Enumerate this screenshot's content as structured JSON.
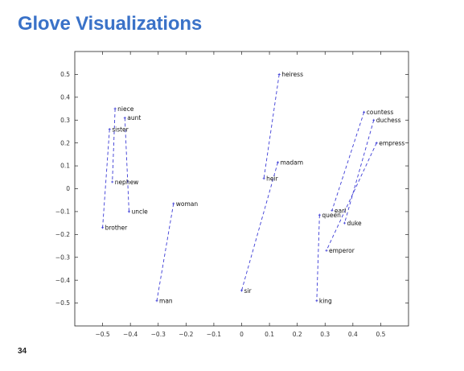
{
  "slide": {
    "title": "Glove Visualizations",
    "page_number": "34"
  },
  "colors": {
    "title": "#3a72c8",
    "pair_line": "#3b3bd6",
    "axes": "#222222",
    "page_background": "#ffffff"
  },
  "chart_data": {
    "type": "scatter",
    "title": "",
    "xlabel": "",
    "ylabel": "",
    "xlim": [
      -0.6,
      0.6
    ],
    "ylim": [
      -0.6,
      0.6
    ],
    "xticks": [
      -0.5,
      -0.4,
      -0.3,
      -0.2,
      -0.1,
      0,
      0.1,
      0.2,
      0.3,
      0.4,
      0.5
    ],
    "xtick_labels": [
      "−0.5",
      "−0.4",
      "−0.3",
      "−0.2",
      "−0.1",
      "0",
      "0.1",
      "0.2",
      "0.3",
      "0.4",
      "0.5"
    ],
    "yticks": [
      0.5,
      0.4,
      0.3,
      0.2,
      0.1,
      0,
      -0.1,
      -0.2,
      -0.3,
      -0.4,
      -0.5
    ],
    "ytick_labels": [
      "0.5",
      "0.4",
      "0.3",
      "0.2",
      "0.1",
      "0",
      "−0.1",
      "−0.2",
      "−0.3",
      "−0.4",
      "−0.5"
    ],
    "grid": false,
    "points": [
      {
        "word": "niece",
        "x": -0.455,
        "y": 0.35
      },
      {
        "word": "aunt",
        "x": -0.42,
        "y": 0.31
      },
      {
        "word": "sister",
        "x": -0.475,
        "y": 0.26
      },
      {
        "word": "nephew",
        "x": -0.465,
        "y": 0.03
      },
      {
        "word": "uncle",
        "x": -0.405,
        "y": -0.1
      },
      {
        "word": "brother",
        "x": -0.5,
        "y": -0.17
      },
      {
        "word": "woman",
        "x": -0.245,
        "y": -0.065
      },
      {
        "word": "man",
        "x": -0.305,
        "y": -0.49
      },
      {
        "word": "heiress",
        "x": 0.135,
        "y": 0.5
      },
      {
        "word": "madam",
        "x": 0.13,
        "y": 0.115
      },
      {
        "word": "heir",
        "x": 0.08,
        "y": 0.045
      },
      {
        "word": "sir",
        "x": 0.0,
        "y": -0.445
      },
      {
        "word": "countess",
        "x": 0.44,
        "y": 0.335
      },
      {
        "word": "duchess",
        "x": 0.475,
        "y": 0.3
      },
      {
        "word": "empress",
        "x": 0.485,
        "y": 0.2
      },
      {
        "word": "earl",
        "x": 0.325,
        "y": -0.095
      },
      {
        "word": "queen",
        "x": 0.28,
        "y": -0.115
      },
      {
        "word": "duke",
        "x": 0.37,
        "y": -0.15
      },
      {
        "word": "emperor",
        "x": 0.305,
        "y": -0.27
      },
      {
        "word": "king",
        "x": 0.27,
        "y": -0.49
      }
    ],
    "pairs": [
      [
        "niece",
        "nephew"
      ],
      [
        "aunt",
        "uncle"
      ],
      [
        "sister",
        "brother"
      ],
      [
        "woman",
        "man"
      ],
      [
        "heiress",
        "heir"
      ],
      [
        "madam",
        "sir"
      ],
      [
        "countess",
        "earl"
      ],
      [
        "duchess",
        "duke"
      ],
      [
        "empress",
        "emperor"
      ],
      [
        "queen",
        "king"
      ]
    ]
  }
}
